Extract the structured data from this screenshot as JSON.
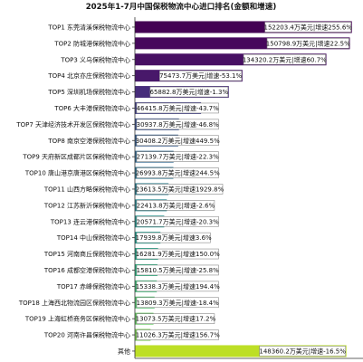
{
  "chart_data": {
    "type": "bar",
    "orientation": "horizontal",
    "title": "2025年1-7月中国保税物流中心进口排名(金额和增速)",
    "categories": [
      "TOP1  东莞清溪保税物流中心",
      "TOP2  防城港保税物流中心",
      "TOP3  义乌保税物流中心",
      "TOP4  北京亦庄保税物流中心",
      "TOP5  深圳机场保税物流中心",
      "TOP6  大丰港保税物流中心",
      "TOP7  天津经济技术开发区保税物流中心",
      "TOP8  南京空港保税物流中心",
      "TOP9  天府新区成都片区保税物流中心",
      "TOP10  唐山港京唐港区保税物流中心",
      "TOP11  山西方略保税物流中心",
      "TOP12  江苏新沂保税物流中心",
      "TOP13  连云港保税物流中心",
      "TOP14  中山保税物流中心",
      "TOP15  河南商丘保税物流中心",
      "TOP16  成都空港保税物流中心",
      "TOP17  赤峰保税物流中心",
      "TOP18  上海西北物流园区保税物流中心",
      "TOP19  上海虹桥商务区保税物流中心",
      "TOP20  河南许昌保税物流中心",
      "其他"
    ],
    "values": [
      152203.4,
      150798.9,
      134320.2,
      75473.7,
      65882.8,
      46415.8,
      30937.8,
      30408.2,
      27139.7,
      26993.8,
      23613.5,
      22413.8,
      20571.7,
      17939.8,
      16281.9,
      15810.5,
      15338.3,
      13809.3,
      13073.5,
      11026.3,
      148360.2
    ],
    "labels": [
      "152203.4万美元|增速255.6%",
      "150798.9万美元|增速22.5%",
      "134320.2万美元|增速60.7%",
      "75473.7万美元|增速-53.1%",
      "65882.8万美元|增速-1.3%",
      "46415.8万美元|增速-43.7%",
      "30937.8万美元|增速-46.8%",
      "30408.2万美元|增速449.5%",
      "27139.7万美元|增速-22.3%",
      "26993.8万美元|增速244.5%",
      "23613.5万美元|增速1929.8%",
      "22413.8万美元|增速-2.6%",
      "20571.7万美元|增速-20.3%",
      "17939.8万美元|增速3.6%",
      "16281.9万美元|增速150.0%",
      "15810.5万美元|增速-25.8%",
      "15338.3万美元|增速194.4%",
      "13809.3万美元|增速-18.4%",
      "13073.5万美元|增速17.2%",
      "11026.3万美元|增速156.7%",
      "148360.2万美元|增速-16.5%"
    ],
    "xlim": [
      0,
      160000
    ],
    "grid": false,
    "legend": "none",
    "colors": [
      "#440154",
      "#46085c",
      "#471063",
      "#48186a",
      "#472d7b",
      "#424086",
      "#3b528b",
      "#365c8d",
      "#31688e",
      "#2c728e",
      "#287c8e",
      "#24868e",
      "#21918c",
      "#1f9a8a",
      "#20a486",
      "#2ab07f",
      "#3bbb75",
      "#4ec36b",
      "#62cb5f",
      "#7ad151",
      "#bddf26"
    ]
  }
}
